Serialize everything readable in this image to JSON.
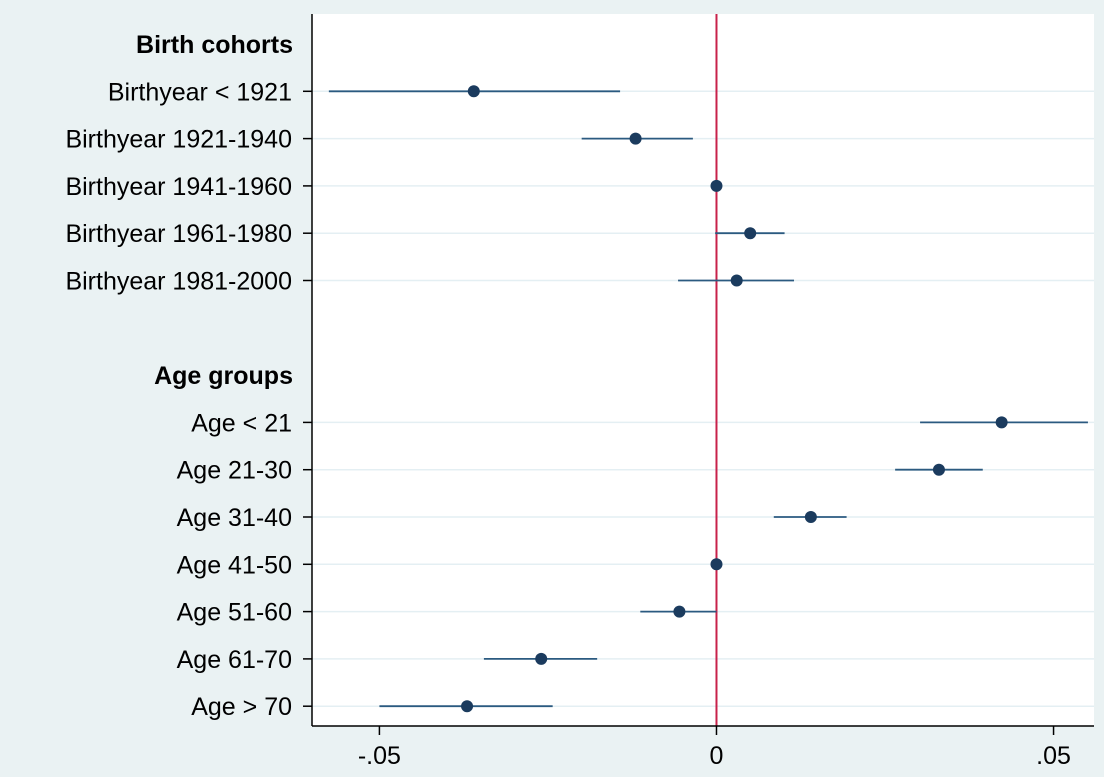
{
  "chart_data": {
    "type": "scatter",
    "subtype": "coefficient-plot",
    "title": "",
    "xlabel": "",
    "ylabel": "",
    "xlim": [
      -0.06,
      0.056
    ],
    "xticks": [
      {
        "value": -0.05,
        "label": "-.05"
      },
      {
        "value": 0,
        "label": "0"
      },
      {
        "value": 0.05,
        "label": ".05"
      }
    ],
    "reference_line": {
      "x": 0,
      "color": "#c8214a"
    },
    "grid": true,
    "colors": {
      "marker": "#1b3b5e",
      "ci": "#2b5a80",
      "background": "#eaf2f3",
      "plot_area": "#ffffff",
      "gridline": "#e4eff3"
    },
    "groups": [
      {
        "title": "Birth cohorts",
        "rows": [
          {
            "label": "Birthyear < 1921",
            "estimate": -0.036,
            "ci": [
              -0.0575,
              -0.0143
            ]
          },
          {
            "label": "Birthyear 1921-1940",
            "estimate": -0.012,
            "ci": [
              -0.02,
              -0.0035
            ]
          },
          {
            "label": "Birthyear 1941-1960",
            "estimate": 0.0,
            "ci": [
              0.0,
              0.0
            ]
          },
          {
            "label": "Birthyear 1961-1980",
            "estimate": 0.005,
            "ci": [
              -0.0002,
              0.0101
            ]
          },
          {
            "label": "Birthyear 1981-2000",
            "estimate": 0.003,
            "ci": [
              -0.0057,
              0.0115
            ]
          }
        ]
      },
      {
        "title": "Age groups",
        "rows": [
          {
            "label": "Age < 21",
            "estimate": 0.0423,
            "ci": [
              0.0302,
              0.0551
            ]
          },
          {
            "label": "Age 21-30",
            "estimate": 0.033,
            "ci": [
              0.0265,
              0.0395
            ]
          },
          {
            "label": "Age 31-40",
            "estimate": 0.014,
            "ci": [
              0.0085,
              0.0193
            ]
          },
          {
            "label": "Age 41-50",
            "estimate": 0.0,
            "ci": [
              0.0,
              0.0
            ]
          },
          {
            "label": "Age 51-60",
            "estimate": -0.0055,
            "ci": [
              -0.0113,
              0.0
            ]
          },
          {
            "label": "Age 61-70",
            "estimate": -0.026,
            "ci": [
              -0.0345,
              -0.0177
            ]
          },
          {
            "label": "Age > 70",
            "estimate": -0.037,
            "ci": [
              -0.05,
              -0.0243
            ]
          }
        ]
      }
    ]
  }
}
